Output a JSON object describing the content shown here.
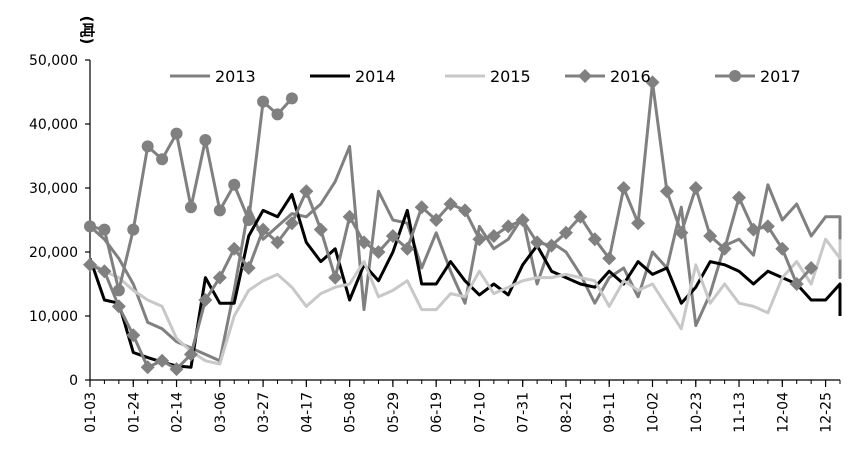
{
  "chart_data": {
    "type": "line",
    "title": "",
    "ylabel": "(吨)",
    "xlabel": "",
    "ylim": [
      0,
      50000
    ],
    "y_ticks": [
      0,
      10000,
      20000,
      30000,
      40000,
      50000
    ],
    "y_tick_labels": [
      "0",
      "10,000",
      "20,000",
      "30,000",
      "40,000",
      "50,000"
    ],
    "x_ticks": [
      1,
      4,
      7,
      10,
      13,
      16,
      19,
      22,
      25,
      28,
      31,
      34,
      37,
      40,
      43,
      46,
      49,
      52
    ],
    "x_tick_labels": [
      "01-03",
      "01-24",
      "02-14",
      "03-06",
      "03-27",
      "04-17",
      "05-08",
      "05-29",
      "06-19",
      "07-10",
      "07-31",
      "08-21",
      "09-11",
      "10-02",
      "10-23",
      "11-13",
      "12-04",
      "12-25"
    ],
    "x_range": [
      1,
      53
    ],
    "grid": false,
    "legend_position": "top",
    "series": [
      {
        "name": "2013",
        "color": "#808080",
        "marker": "none",
        "width": 3,
        "points": [
          [
            1,
            24000
          ],
          [
            2,
            22000
          ],
          [
            3,
            19000
          ],
          [
            4,
            15000
          ],
          [
            5,
            9000
          ],
          [
            6,
            8000
          ],
          [
            7,
            6000
          ],
          [
            8,
            5000
          ],
          [
            9,
            4000
          ],
          [
            10,
            3000
          ],
          [
            11,
            14000
          ],
          [
            12,
            27000
          ],
          [
            13,
            22000
          ],
          [
            14,
            24000
          ],
          [
            15,
            26000
          ],
          [
            16,
            25500
          ],
          [
            17,
            27500
          ],
          [
            18,
            31000
          ],
          [
            19,
            36500
          ],
          [
            20,
            11000
          ],
          [
            21,
            29500
          ],
          [
            22,
            25000
          ],
          [
            23,
            24500
          ],
          [
            24,
            17500
          ],
          [
            25,
            23000
          ],
          [
            26,
            17000
          ],
          [
            27,
            12000
          ],
          [
            28,
            24000
          ],
          [
            29,
            20500
          ],
          [
            30,
            22000
          ],
          [
            31,
            25500
          ],
          [
            32,
            15000
          ],
          [
            33,
            21500
          ],
          [
            34,
            20000
          ],
          [
            35,
            16500
          ],
          [
            36,
            12000
          ],
          [
            37,
            16000
          ],
          [
            38,
            17500
          ],
          [
            39,
            13000
          ],
          [
            40,
            20000
          ],
          [
            41,
            17500
          ],
          [
            42,
            27000
          ],
          [
            43,
            8500
          ],
          [
            44,
            13500
          ],
          [
            45,
            21000
          ],
          [
            46,
            22000
          ],
          [
            47,
            19500
          ],
          [
            48,
            30500
          ],
          [
            49,
            25000
          ],
          [
            50,
            27500
          ],
          [
            51,
            22500
          ],
          [
            52,
            25500
          ],
          [
            53,
            25500
          ],
          [
            54,
            16000
          ],
          [
            55,
            22000
          ]
        ]
      },
      {
        "name": "2014",
        "color": "#000000",
        "marker": "none",
        "width": 3,
        "points": [
          [
            1,
            19000
          ],
          [
            2,
            12500
          ],
          [
            3,
            12000
          ],
          [
            4,
            4300
          ],
          [
            5,
            3500
          ],
          [
            6,
            2800
          ],
          [
            7,
            2200
          ],
          [
            8,
            2000
          ],
          [
            9,
            16000
          ],
          [
            10,
            12000
          ],
          [
            11,
            12000
          ],
          [
            12,
            22500
          ],
          [
            13,
            26500
          ],
          [
            14,
            25500
          ],
          [
            15,
            29000
          ],
          [
            16,
            21500
          ],
          [
            17,
            18500
          ],
          [
            18,
            20500
          ],
          [
            19,
            12500
          ],
          [
            20,
            18000
          ],
          [
            21,
            15500
          ],
          [
            22,
            20000
          ],
          [
            23,
            26500
          ],
          [
            24,
            15000
          ],
          [
            25,
            15000
          ],
          [
            26,
            18500
          ],
          [
            27,
            15500
          ],
          [
            28,
            13300
          ],
          [
            29,
            15000
          ],
          [
            30,
            13300
          ],
          [
            31,
            18000
          ],
          [
            32,
            21000
          ],
          [
            33,
            17000
          ],
          [
            34,
            16000
          ],
          [
            35,
            15000
          ],
          [
            36,
            14500
          ],
          [
            37,
            17000
          ],
          [
            38,
            15000
          ],
          [
            39,
            18500
          ],
          [
            40,
            16500
          ],
          [
            41,
            17500
          ],
          [
            42,
            12000
          ],
          [
            43,
            14500
          ],
          [
            44,
            18500
          ],
          [
            45,
            18000
          ],
          [
            46,
            17000
          ],
          [
            47,
            15000
          ],
          [
            48,
            17000
          ],
          [
            49,
            16000
          ],
          [
            50,
            15000
          ],
          [
            51,
            12500
          ],
          [
            52,
            12500
          ],
          [
            53,
            15000
          ],
          [
            54,
            15000
          ],
          [
            55,
            10000
          ]
        ]
      },
      {
        "name": "2015",
        "color": "#c8c8c8",
        "marker": "none",
        "width": 3,
        "points": [
          [
            1,
            18500
          ],
          [
            2,
            17000
          ],
          [
            3,
            16000
          ],
          [
            4,
            14000
          ],
          [
            5,
            12500
          ],
          [
            6,
            11500
          ],
          [
            7,
            6500
          ],
          [
            8,
            4500
          ],
          [
            9,
            3000
          ],
          [
            10,
            2500
          ],
          [
            11,
            10000
          ],
          [
            12,
            14000
          ],
          [
            13,
            15500
          ],
          [
            14,
            16500
          ],
          [
            15,
            14500
          ],
          [
            16,
            11500
          ],
          [
            17,
            13500
          ],
          [
            18,
            14500
          ],
          [
            19,
            15000
          ],
          [
            20,
            18500
          ],
          [
            21,
            13000
          ],
          [
            22,
            14000
          ],
          [
            23,
            15500
          ],
          [
            24,
            11000
          ],
          [
            25,
            11000
          ],
          [
            26,
            13500
          ],
          [
            27,
            13000
          ],
          [
            28,
            17000
          ],
          [
            29,
            13500
          ],
          [
            30,
            14500
          ],
          [
            31,
            15500
          ],
          [
            32,
            16000
          ],
          [
            33,
            16000
          ],
          [
            34,
            16500
          ],
          [
            35,
            16000
          ],
          [
            36,
            15500
          ],
          [
            37,
            11500
          ],
          [
            38,
            15500
          ],
          [
            39,
            14000
          ],
          [
            40,
            15000
          ],
          [
            41,
            11500
          ],
          [
            42,
            8000
          ],
          [
            43,
            18000
          ],
          [
            44,
            12000
          ],
          [
            45,
            15000
          ],
          [
            46,
            12000
          ],
          [
            47,
            11500
          ],
          [
            48,
            10500
          ],
          [
            49,
            16000
          ],
          [
            50,
            18500
          ],
          [
            51,
            15000
          ],
          [
            52,
            22000
          ],
          [
            53,
            19000
          ],
          [
            54,
            19000
          ],
          [
            55,
            22000
          ]
        ]
      },
      {
        "name": "2016",
        "color": "#808080",
        "marker": "diamond",
        "width": 3,
        "points": [
          [
            1,
            18000
          ],
          [
            2,
            17000
          ],
          [
            3,
            11500
          ],
          [
            4,
            7000
          ],
          [
            5,
            2000
          ],
          [
            6,
            3000
          ],
          [
            7,
            1700
          ],
          [
            8,
            4000
          ],
          [
            9,
            12500
          ],
          [
            10,
            16000
          ],
          [
            11,
            20500
          ],
          [
            12,
            17500
          ],
          [
            13,
            23500
          ],
          [
            14,
            21500
          ],
          [
            15,
            24500
          ],
          [
            16,
            29500
          ],
          [
            17,
            23500
          ],
          [
            18,
            16000
          ],
          [
            19,
            25500
          ],
          [
            20,
            21500
          ],
          [
            21,
            20000
          ],
          [
            22,
            22500
          ],
          [
            23,
            20500
          ],
          [
            24,
            27000
          ],
          [
            25,
            25000
          ],
          [
            26,
            27500
          ],
          [
            27,
            26500
          ],
          [
            28,
            22000
          ],
          [
            29,
            22500
          ],
          [
            30,
            24000
          ],
          [
            31,
            25000
          ],
          [
            32,
            21500
          ],
          [
            33,
            21000
          ],
          [
            34,
            23000
          ],
          [
            35,
            25500
          ],
          [
            36,
            22000
          ],
          [
            37,
            19000
          ],
          [
            38,
            30000
          ],
          [
            39,
            24500
          ],
          [
            40,
            46500
          ],
          [
            41,
            29500
          ],
          [
            42,
            23000
          ],
          [
            43,
            30000
          ],
          [
            44,
            22500
          ],
          [
            45,
            20500
          ],
          [
            46,
            28500
          ],
          [
            47,
            23500
          ],
          [
            48,
            24000
          ],
          [
            49,
            20500
          ],
          [
            50,
            15000
          ],
          [
            51,
            17500
          ]
        ]
      },
      {
        "name": "2017",
        "color": "#808080",
        "marker": "circle",
        "width": 3,
        "points": [
          [
            1,
            24000
          ],
          [
            2,
            23500
          ],
          [
            3,
            14000
          ],
          [
            4,
            23500
          ],
          [
            5,
            36500
          ],
          [
            6,
            34500
          ],
          [
            7,
            38500
          ],
          [
            8,
            27000
          ],
          [
            9,
            37500
          ],
          [
            10,
            26500
          ],
          [
            11,
            30500
          ],
          [
            12,
            25000
          ],
          [
            13,
            43500
          ],
          [
            14,
            41500
          ],
          [
            15,
            44000
          ]
        ]
      }
    ]
  }
}
